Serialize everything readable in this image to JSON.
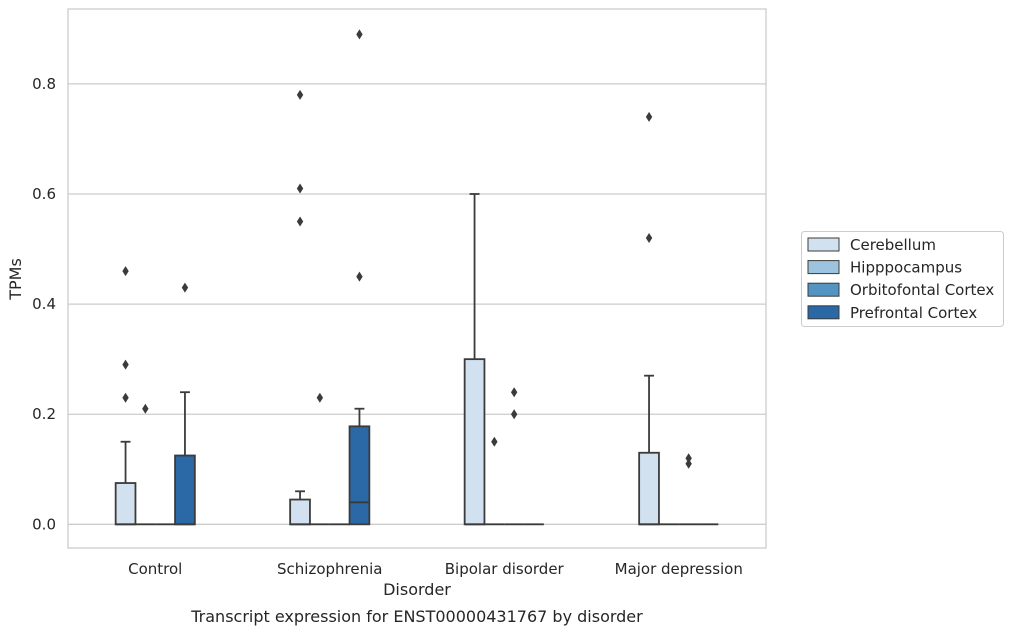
{
  "chart_data": {
    "type": "box",
    "title": "Transcript expression for ENST00000431767 by disorder",
    "xlabel": "Disorder",
    "ylabel": "TPMs",
    "ylim": [
      -0.043,
      0.936
    ],
    "yticks": [
      0.0,
      0.2,
      0.4,
      0.6,
      0.8
    ],
    "ytick_labels": [
      "0.0",
      "0.2",
      "0.4",
      "0.6",
      "0.8"
    ],
    "grid": "horizontal",
    "legend_position": "right",
    "categories": [
      "Control",
      "Schizophrenia",
      "Bipolar disorder",
      "Major depression"
    ],
    "series": [
      {
        "name": "Cerebellum",
        "color": "#d2e1f0",
        "boxes": [
          {
            "category": "Control",
            "whislo": 0.0,
            "q1": 0.0,
            "median": 0.0,
            "q3": 0.075,
            "whishi": 0.15,
            "fliers": [
              0.23,
              0.29,
              0.46
            ]
          },
          {
            "category": "Schizophrenia",
            "whislo": 0.0,
            "q1": 0.0,
            "median": 0.0,
            "q3": 0.045,
            "whishi": 0.06,
            "fliers": [
              0.55,
              0.61,
              0.78
            ]
          },
          {
            "category": "Bipolar disorder",
            "whislo": 0.0,
            "q1": 0.0,
            "median": 0.0,
            "q3": 0.3,
            "whishi": 0.6,
            "fliers": []
          },
          {
            "category": "Major depression",
            "whislo": 0.0,
            "q1": 0.0,
            "median": 0.0,
            "q3": 0.13,
            "whishi": 0.27,
            "fliers": [
              0.52,
              0.74
            ]
          }
        ]
      },
      {
        "name": "Hipppocampus",
        "color": "#9dc3de",
        "boxes": [
          {
            "category": "Control",
            "whislo": 0.0,
            "q1": 0.0,
            "median": 0.0,
            "q3": 0.0,
            "whishi": 0.0,
            "fliers": [
              0.21
            ]
          },
          {
            "category": "Schizophrenia",
            "whislo": 0.0,
            "q1": 0.0,
            "median": 0.0,
            "q3": 0.0,
            "whishi": 0.0,
            "fliers": [
              0.23
            ]
          },
          {
            "category": "Bipolar disorder",
            "whislo": 0.0,
            "q1": 0.0,
            "median": 0.0,
            "q3": 0.0,
            "whishi": 0.0,
            "fliers": [
              0.15
            ]
          },
          {
            "category": "Major depression",
            "whislo": 0.0,
            "q1": 0.0,
            "median": 0.0,
            "q3": 0.0,
            "whishi": 0.0,
            "fliers": []
          }
        ]
      },
      {
        "name": "Orbitofontal Cortex",
        "color": "#5494c3",
        "boxes": [
          {
            "category": "Control",
            "whislo": 0.0,
            "q1": 0.0,
            "median": 0.0,
            "q3": 0.0,
            "whishi": 0.0,
            "fliers": []
          },
          {
            "category": "Schizophrenia",
            "whislo": 0.0,
            "q1": 0.0,
            "median": 0.0,
            "q3": 0.0,
            "whishi": 0.0,
            "fliers": []
          },
          {
            "category": "Bipolar disorder",
            "whislo": 0.0,
            "q1": 0.0,
            "median": 0.0,
            "q3": 0.0,
            "whishi": 0.0,
            "fliers": [
              0.2,
              0.24
            ]
          },
          {
            "category": "Major depression",
            "whislo": 0.0,
            "q1": 0.0,
            "median": 0.0,
            "q3": 0.0,
            "whishi": 0.0,
            "fliers": [
              0.11,
              0.12
            ]
          }
        ]
      },
      {
        "name": "Prefrontal Cortex",
        "color": "#2a68a6",
        "boxes": [
          {
            "category": "Control",
            "whislo": 0.0,
            "q1": 0.0,
            "median": 0.0,
            "q3": 0.125,
            "whishi": 0.24,
            "fliers": [
              0.43
            ]
          },
          {
            "category": "Schizophrenia",
            "whislo": 0.0,
            "q1": 0.0,
            "median": 0.04,
            "q3": 0.178,
            "whishi": 0.21,
            "fliers": [
              0.45,
              0.89
            ]
          },
          {
            "category": "Bipolar disorder",
            "whislo": 0.0,
            "q1": 0.0,
            "median": 0.0,
            "q3": 0.0,
            "whishi": 0.0,
            "fliers": []
          },
          {
            "category": "Major depression",
            "whislo": 0.0,
            "q1": 0.0,
            "median": 0.0,
            "q3": 0.0,
            "whishi": 0.0,
            "fliers": []
          }
        ]
      }
    ]
  }
}
